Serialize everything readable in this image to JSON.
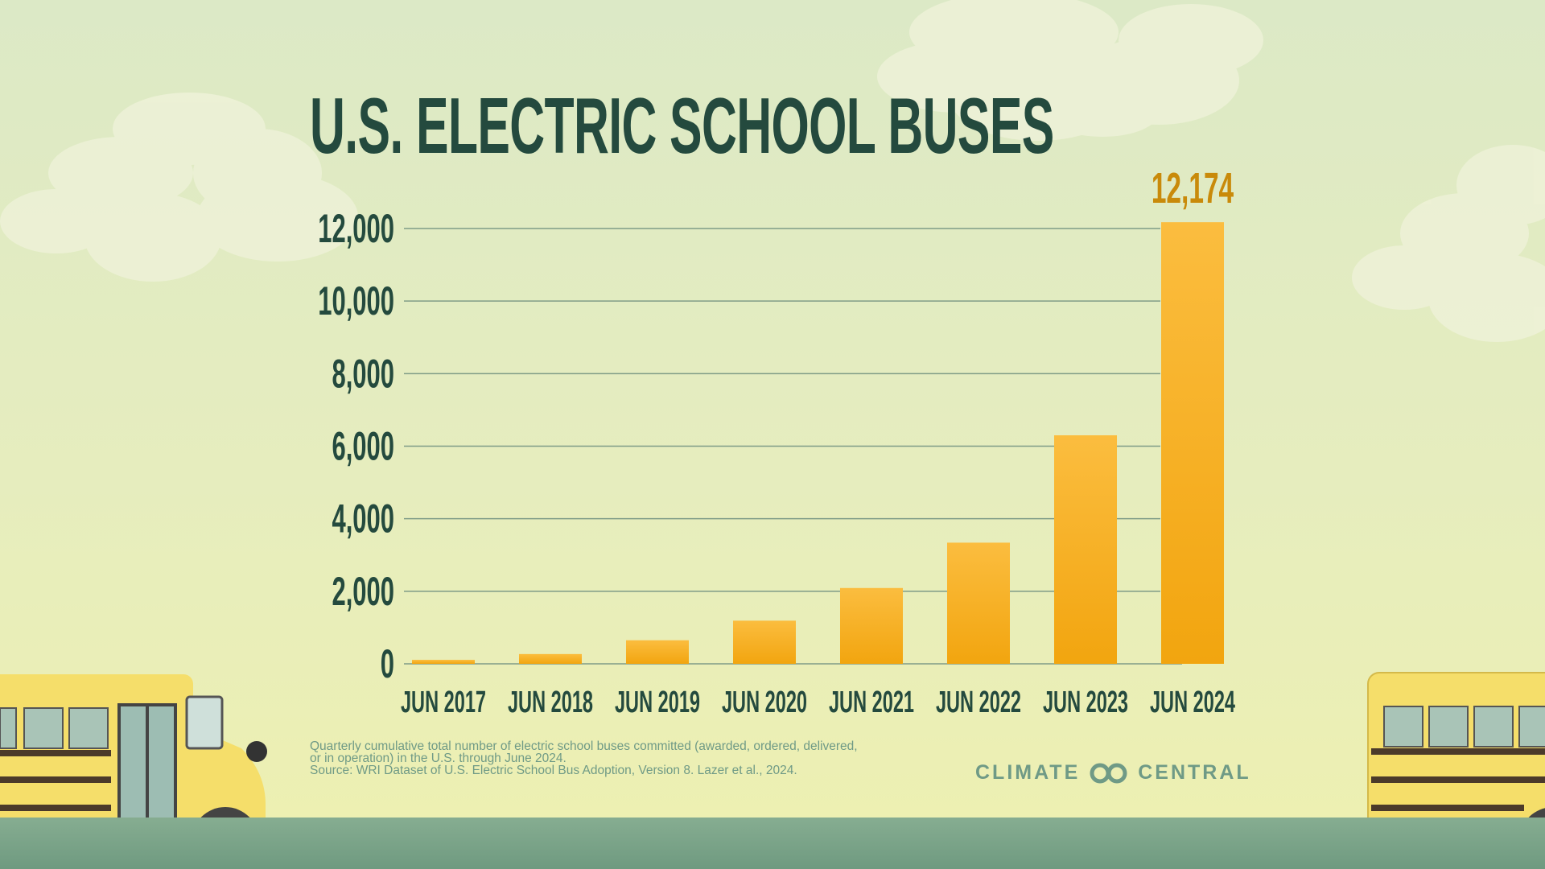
{
  "title": "U.S. ELECTRIC SCHOOL BUSES",
  "chart_data": {
    "type": "bar",
    "title": "U.S. ELECTRIC SCHOOL BUSES",
    "categories": [
      "JUN 2017",
      "JUN 2018",
      "JUN 2019",
      "JUN 2020",
      "JUN 2021",
      "JUN 2022",
      "JUN 2023",
      "JUN 2024"
    ],
    "values": [
      110,
      270,
      650,
      1190,
      2090,
      3340,
      6300,
      12174
    ],
    "data_labels": [
      {
        "category": "JUN 2024",
        "text": "12,174"
      }
    ],
    "yticks": [
      "0",
      "2,000",
      "4,000",
      "6,000",
      "8,000",
      "10,000",
      "12,000"
    ],
    "ytick_values": [
      0,
      2000,
      4000,
      6000,
      8000,
      10000,
      12000
    ],
    "ylim": [
      0,
      12000
    ],
    "grid": true,
    "colors": {
      "bar_top": "#fbbd3f",
      "bar_bottom": "#f2a50f",
      "label": "#c98a0a",
      "text": "#244a3e",
      "grid": "#7f9c87"
    }
  },
  "footnote": {
    "line1": "Quarterly cumulative total number of electric school buses committed (awarded, ordered, delivered,",
    "line2": "or in operation) in the U.S. through June 2024.",
    "line3": "Source: WRI Dataset of U.S. Electric School Bus Adoption, Version 8. Lazer et al., 2024."
  },
  "logo": {
    "left": "CLIMATE",
    "right": "CENTRAL"
  }
}
